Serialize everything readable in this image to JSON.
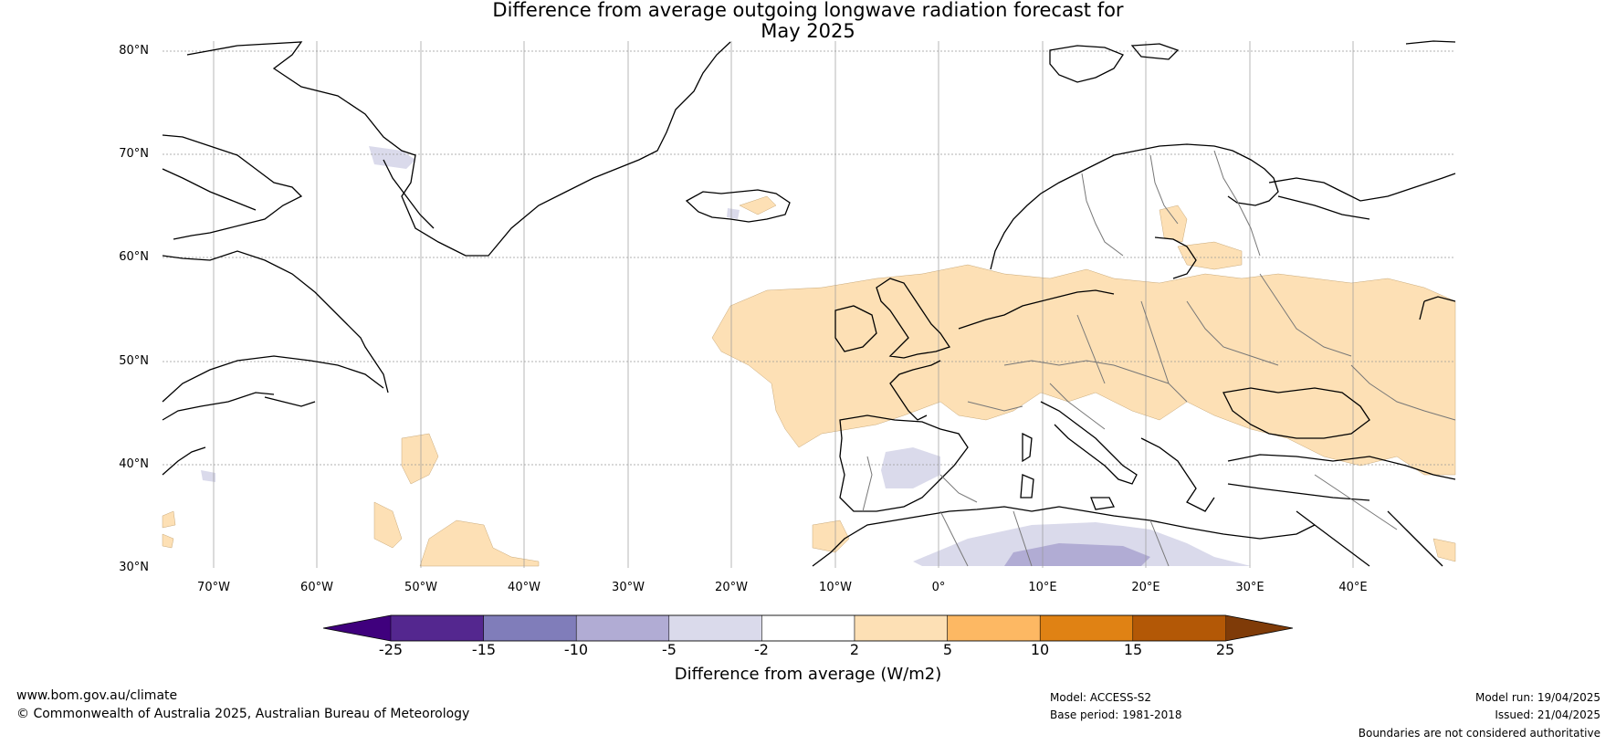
{
  "title_line1": "Difference from average outgoing longwave radiation forecast for",
  "title_line2": "May 2025",
  "lat_ticks": [
    "80°N",
    "70°N",
    "60°N",
    "50°N",
    "40°N",
    "30°N"
  ],
  "lon_ticks": [
    "70°W",
    "60°W",
    "50°W",
    "40°W",
    "30°W",
    "20°W",
    "10°W",
    "0°",
    "10°E",
    "20°E",
    "30°E",
    "40°E"
  ],
  "colorbar": {
    "ticks": [
      "-25",
      "-15",
      "-10",
      "-5",
      "-2",
      "2",
      "5",
      "10",
      "15",
      "25"
    ],
    "colors": [
      "#3f007d",
      "#54278f",
      "#807dba",
      "#b1acd4",
      "#dadaeb",
      "#ffffff",
      "#fde0b5",
      "#fdb863",
      "#e08214",
      "#b35806",
      "#7f3b08"
    ],
    "title": "Difference from average (W/m2)"
  },
  "footer": {
    "website": "www.bom.gov.au/climate",
    "copyright": "© Commonwealth of Australia 2025, Australian Bureau of Meteorology",
    "model": "Model: ACCESS-S2",
    "base_period": "Base period: 1981-2018",
    "model_run": "Model run: 19/04/2025",
    "issued": "Issued: 21/04/2025",
    "disclaimer": "Boundaries are not considered authoritative"
  }
}
